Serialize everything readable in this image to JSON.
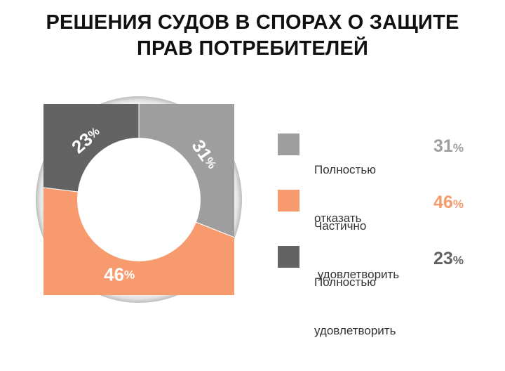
{
  "title": [
    "РЕШЕНИЯ СУДОВ В СПОРАХ О ЗАЩИТЕ",
    "ПРАВ ПОТРЕБИТЕЛЕЙ"
  ],
  "chart_data": {
    "type": "pie",
    "style": "donut",
    "title": "РЕШЕНИЯ СУДОВ В СПОРАХ О ЗАЩИТЕ ПРАВ ПОТРЕБИТЕЛЕЙ",
    "unit": "%",
    "slices": [
      {
        "label": "Полностью отказать",
        "label_lines": [
          "Полностью",
          "отказать"
        ],
        "value": 31,
        "color": "#9e9e9e"
      },
      {
        "label": "Частично удовлетворить",
        "label_lines": [
          "Частично",
          " удовлетворить"
        ],
        "value": 46,
        "color": "#f79a6e"
      },
      {
        "label": "Полностью удовлетворить",
        "label_lines": [
          "Полностью",
          "удовлетворить"
        ],
        "value": 23,
        "color": "#636363"
      }
    ],
    "legend_position": "right"
  }
}
